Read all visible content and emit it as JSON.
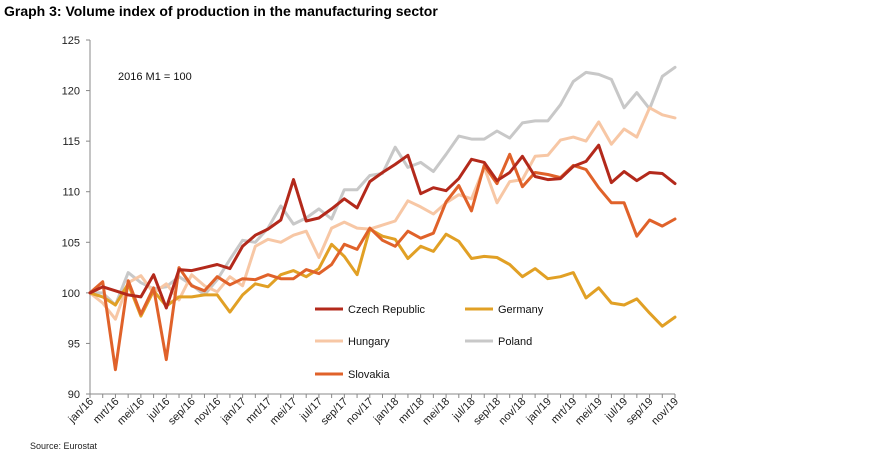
{
  "title": "Graph 3: Volume index of production in the manufacturing sector",
  "source": "Source: Eurostat",
  "chart_data": {
    "type": "line",
    "title": "Graph 3: Volume index of production in the manufacturing sector",
    "annotation": "2016 M1 = 100",
    "ylim": [
      90,
      125
    ],
    "yticks": [
      90,
      95,
      100,
      105,
      110,
      115,
      120,
      125
    ],
    "x": [
      "jan/16",
      "feb/16",
      "mrt/16",
      "apr/16",
      "mei/16",
      "jun/16",
      "jul/16",
      "aug/16",
      "sep/16",
      "okt/16",
      "nov/16",
      "dec/16",
      "jan/17",
      "feb/17",
      "mrt/17",
      "apr/17",
      "mei/17",
      "jun/17",
      "jul/17",
      "aug/17",
      "sep/17",
      "okt/17",
      "nov/17",
      "dec/17",
      "jan/18",
      "feb/18",
      "mrt/18",
      "apr/18",
      "mei/18",
      "jun/18",
      "jul/18",
      "aug/18",
      "sep/18",
      "okt/18",
      "nov/18",
      "dec/18",
      "jan/19",
      "feb/19",
      "mrt/19",
      "apr/19",
      "mei/19",
      "jun/19",
      "jul/19",
      "aug/19",
      "sep/19",
      "okt/19",
      "nov/19"
    ],
    "xtick_labels": [
      "jan/16",
      "mrt/16",
      "mei/16",
      "jul/16",
      "sep/16",
      "nov/16",
      "jan/17",
      "mrt/17",
      "mei/17",
      "jul/17",
      "sep/17",
      "nov/17",
      "jan/18",
      "mrt/18",
      "mei/18",
      "jul/18",
      "sep/18",
      "nov/18",
      "jan/19",
      "mrt/19",
      "mei/19",
      "jul/19",
      "sep/19",
      "nov/19"
    ],
    "grid": false,
    "legend_position": "bottom-center",
    "series": [
      {
        "name": "Czech Republic",
        "color": "#b3291b",
        "values": [
          100,
          100.6,
          100.2,
          99.8,
          99.6,
          101.8,
          98.5,
          102.3,
          102.2,
          102.5,
          102.8,
          102.4,
          104.6,
          105.7,
          106.3,
          107.2,
          111.2,
          107.1,
          107.4,
          108.3,
          109.3,
          108.4,
          111.0,
          111.9,
          112.7,
          113.6,
          109.8,
          110.4,
          110.1,
          111.3,
          113.2,
          112.9,
          111.1,
          111.9,
          113.5,
          111.5,
          111.2,
          111.3,
          112.5,
          113.0,
          114.6,
          110.9,
          112.0,
          111.1,
          111.9,
          111.8,
          110.8
        ]
      },
      {
        "name": "Germany",
        "color": "#e1a025",
        "values": [
          100,
          99.6,
          98.8,
          100.9,
          97.7,
          100.2,
          98.7,
          99.6,
          99.6,
          99.8,
          99.8,
          98.1,
          99.8,
          100.9,
          100.6,
          101.8,
          102.2,
          101.6,
          102.4,
          104.8,
          103.6,
          101.8,
          106.3,
          105.6,
          105.3,
          103.4,
          104.6,
          104.1,
          105.8,
          105.1,
          103.4,
          103.6,
          103.5,
          102.8,
          101.6,
          102.4,
          101.4,
          101.6,
          102.0,
          99.5,
          100.5,
          99.0,
          98.8,
          99.4,
          98.0,
          96.7,
          97.6
        ]
      },
      {
        "name": "Hungary",
        "color": "#f7c7a5",
        "values": [
          100,
          99.0,
          97.4,
          101.0,
          101.7,
          100.0,
          100.9,
          99.3,
          101.8,
          100.7,
          100.1,
          101.6,
          100.7,
          104.6,
          105.3,
          105.0,
          105.7,
          106.1,
          103.5,
          106.4,
          107.0,
          106.4,
          106.3,
          106.7,
          107.1,
          109.1,
          108.5,
          107.8,
          108.9,
          109.7,
          109.3,
          112.4,
          108.9,
          111.0,
          111.2,
          113.5,
          113.6,
          115.1,
          115.4,
          115.0,
          116.9,
          114.7,
          116.2,
          115.4,
          118.3,
          117.6,
          117.3
        ]
      },
      {
        "name": "Poland",
        "color": "#c8c8c8",
        "values": [
          100,
          100.0,
          98.8,
          102.0,
          101.0,
          100.4,
          100.6,
          101.6,
          100.8,
          99.8,
          101.3,
          103.3,
          105.2,
          105.0,
          106.4,
          108.6,
          106.8,
          107.4,
          108.3,
          107.3,
          110.2,
          110.2,
          111.6,
          111.8,
          114.4,
          112.4,
          112.9,
          112.0,
          113.7,
          115.5,
          115.2,
          115.2,
          116.0,
          115.3,
          116.8,
          117.0,
          117.0,
          118.6,
          120.9,
          121.8,
          121.6,
          121.1,
          118.3,
          119.8,
          118.2,
          121.4,
          122.3
        ]
      },
      {
        "name": "Slovakia",
        "color": "#e0622a",
        "values": [
          100,
          101.1,
          92.4,
          101.2,
          97.9,
          100.5,
          93.4,
          102.5,
          100.7,
          100.2,
          101.6,
          100.8,
          101.4,
          101.3,
          101.8,
          101.4,
          101.4,
          102.3,
          101.9,
          102.8,
          104.8,
          104.3,
          106.4,
          105.2,
          104.6,
          106.1,
          105.4,
          105.9,
          109.0,
          110.6,
          108.1,
          112.6,
          110.8,
          113.7,
          110.5,
          111.9,
          111.7,
          111.4,
          112.6,
          112.2,
          110.4,
          108.9,
          108.9,
          105.6,
          107.2,
          106.6,
          107.3
        ]
      }
    ]
  }
}
